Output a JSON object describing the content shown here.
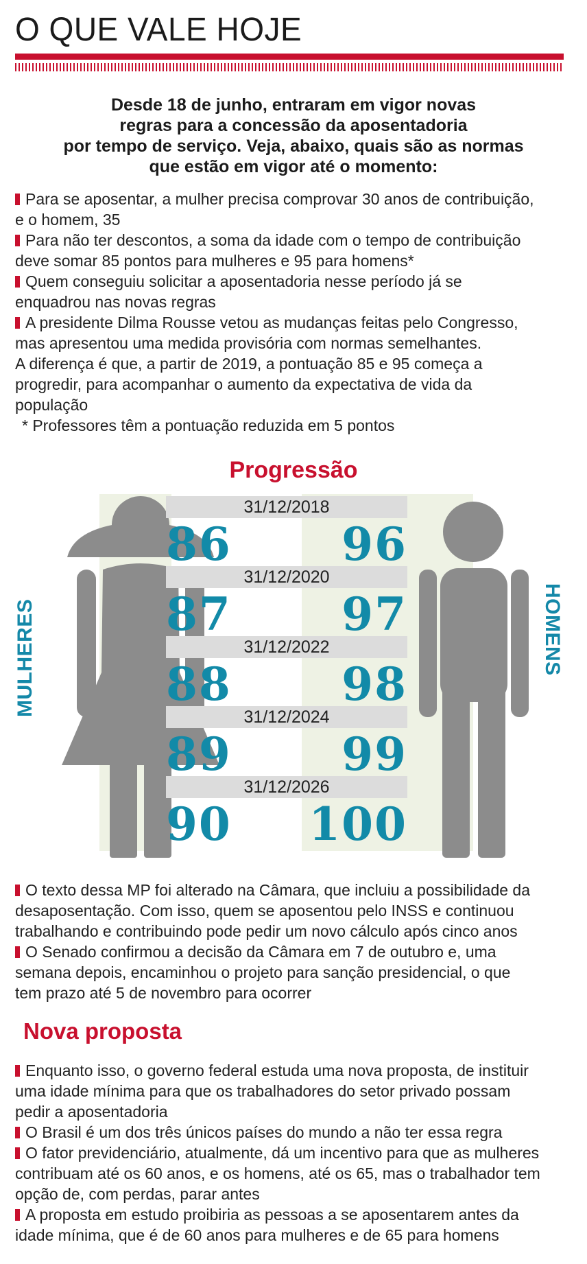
{
  "title": "O QUE VALE HOJE",
  "intro": [
    "Desde 18 de junho, entraram em vigor novas",
    "regras para a concessão da aposentadoria",
    "por tempo de serviço. Veja, abaixo, quais são as normas",
    "que estão em vigor até o momento:"
  ],
  "top_list": {
    "b1": [
      "Para se aposentar, a mulher precisa comprovar 30 anos de contribuição,",
      "e o homem, 35"
    ],
    "b2": [
      "Para não ter descontos, a soma da idade com o tempo de contribuição",
      "deve somar 85 pontos para mulheres e 95 para homens*"
    ],
    "b3": [
      "Quem conseguiu solicitar a aposentadoria nesse período já se",
      "enquadrou nas novas regras"
    ],
    "b4": [
      "A presidente Dilma Rousse  vetou as mudanças feitas pelo Congresso,",
      "mas apresentou uma medida provisória com normas semelhantes."
    ],
    "p1": [
      "A diferença é que, a partir de 2019, a pontuação 85 e 95 começa a",
      "progredir, para acompanhar o aumento da expectativa de vida da",
      "população"
    ],
    "note": "* Professores têm a pontuação reduzida em 5 pontos"
  },
  "progressao": {
    "title": "Progressão",
    "women_label": "MULHERES",
    "men_label": "HOMENS",
    "rows": [
      {
        "date": "31/12/2018",
        "women": "86",
        "men": "96"
      },
      {
        "date": "31/12/2020",
        "women": "87",
        "men": "97"
      },
      {
        "date": "31/12/2022",
        "women": "88",
        "men": "98"
      },
      {
        "date": "31/12/2024",
        "women": "89",
        "men": "99"
      },
      {
        "date": "31/12/2026",
        "women": "90",
        "men": "100"
      }
    ],
    "colors": {
      "accent_red": "#c8102e",
      "number_blue": "#128aa8",
      "figure_gray": "#8c8c8c",
      "band_gray": "#dcdcdc",
      "panel_green": "#eef2e4"
    }
  },
  "middle_list": {
    "b1": [
      "O texto dessa MP foi alterado na Câmara, que incluiu a possibilidade da",
      "desaposentação. Com isso, quem se aposentou pelo INSS e continuou",
      "trabalhando e contribuindo pode pedir um novo cálculo após cinco anos"
    ],
    "b2": [
      "O Senado confirmou a decisão da Câmara em 7 de outubro e, uma",
      "semana depois, encaminhou o projeto para sanção presidencial, o que",
      "tem prazo até 5 de novembro para ocorrer"
    ]
  },
  "nova_proposta": {
    "title": "Nova proposta",
    "b1": [
      "Enquanto isso, o governo federal estuda uma nova proposta, de instituir",
      "uma idade mínima para que os trabalhadores do setor privado possam",
      "pedir a aposentadoria"
    ],
    "b2": [
      "O Brasil é um dos três únicos países do mundo a não ter essa regra"
    ],
    "b3": [
      "O fator previdenciário, atualmente, dá um incentivo para que as mulheres",
      "contribuam até os 60 anos, e os homens, até os 65, mas o trabalhador tem",
      "opção de, com perdas, parar antes"
    ],
    "b4": [
      "A proposta em estudo proibiria as pessoas a se aposentarem antes da",
      "idade mínima, que é de 60 anos para mulheres e de 65 para homens"
    ]
  }
}
